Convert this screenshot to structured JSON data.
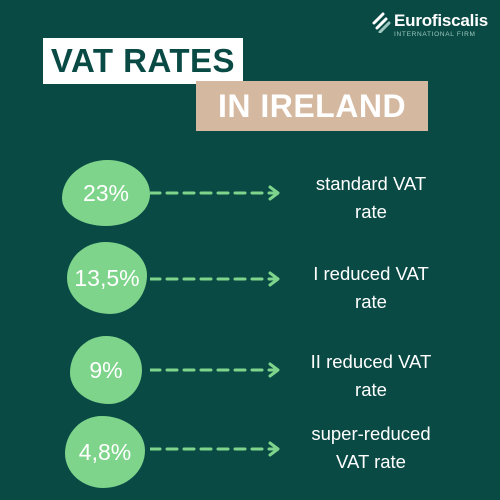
{
  "brand": {
    "name": "Eurofiscalis",
    "tagline": "INTERNATIONAL FIRM"
  },
  "heading": {
    "title": "VAT RATES",
    "subtitle": "IN IRELAND"
  },
  "rates": [
    {
      "value": "23%",
      "line1": "standard VAT",
      "line2": "rate"
    },
    {
      "value": "13,5%",
      "line1": "I reduced VAT",
      "line2": "rate"
    },
    {
      "value": "9%",
      "line1": "II reduced VAT",
      "line2": "rate"
    },
    {
      "value": "4,8%",
      "line1": "super-reduced",
      "line2": "VAT rate"
    }
  ],
  "colors": {
    "background": "#0a4a45",
    "accent_green": "#7dd48a",
    "highlight_beige": "#d4b9a0",
    "white": "#ffffff"
  }
}
